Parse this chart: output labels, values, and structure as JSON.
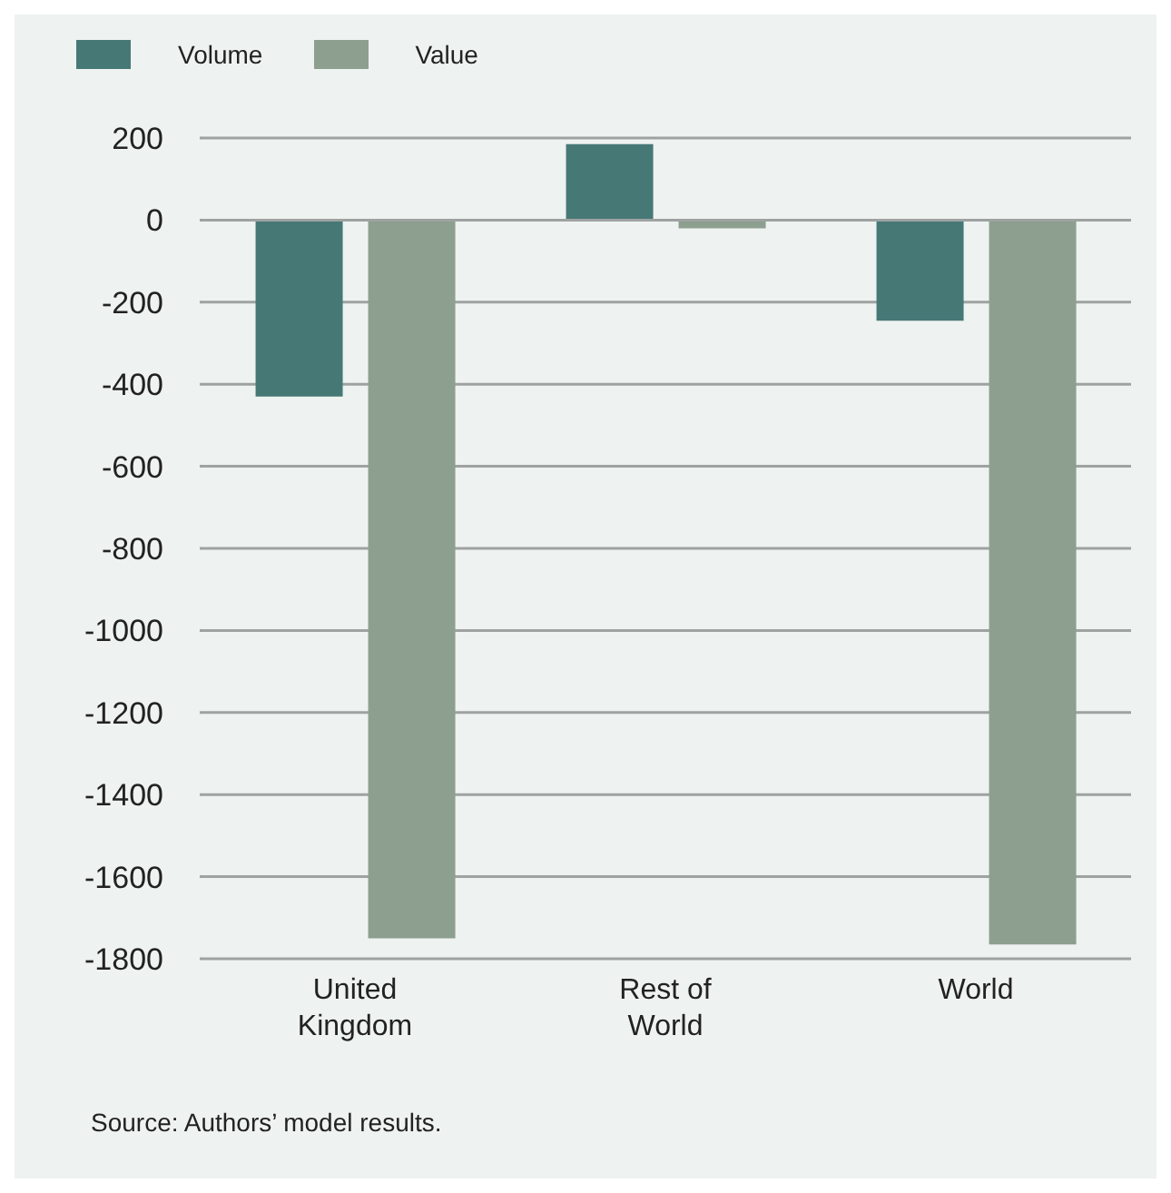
{
  "chart_data": {
    "type": "bar",
    "categories": [
      "United\nKingdom",
      "Rest of\nWorld",
      "World"
    ],
    "series": [
      {
        "name": "Volume",
        "color": "#467876",
        "values": [
          -430,
          185,
          -245
        ]
      },
      {
        "name": "Value",
        "color": "#8d9f8f",
        "values": [
          -1750,
          -20,
          -1765
        ]
      }
    ],
    "ylim": [
      -1800,
      200
    ],
    "yticks": [
      -1800,
      -1600,
      -1400,
      -1200,
      -1000,
      -800,
      -600,
      -400,
      -200,
      0,
      200
    ],
    "grid": "y",
    "legend": "top left",
    "annotations": [
      "Source: Authors’ model results."
    ]
  }
}
